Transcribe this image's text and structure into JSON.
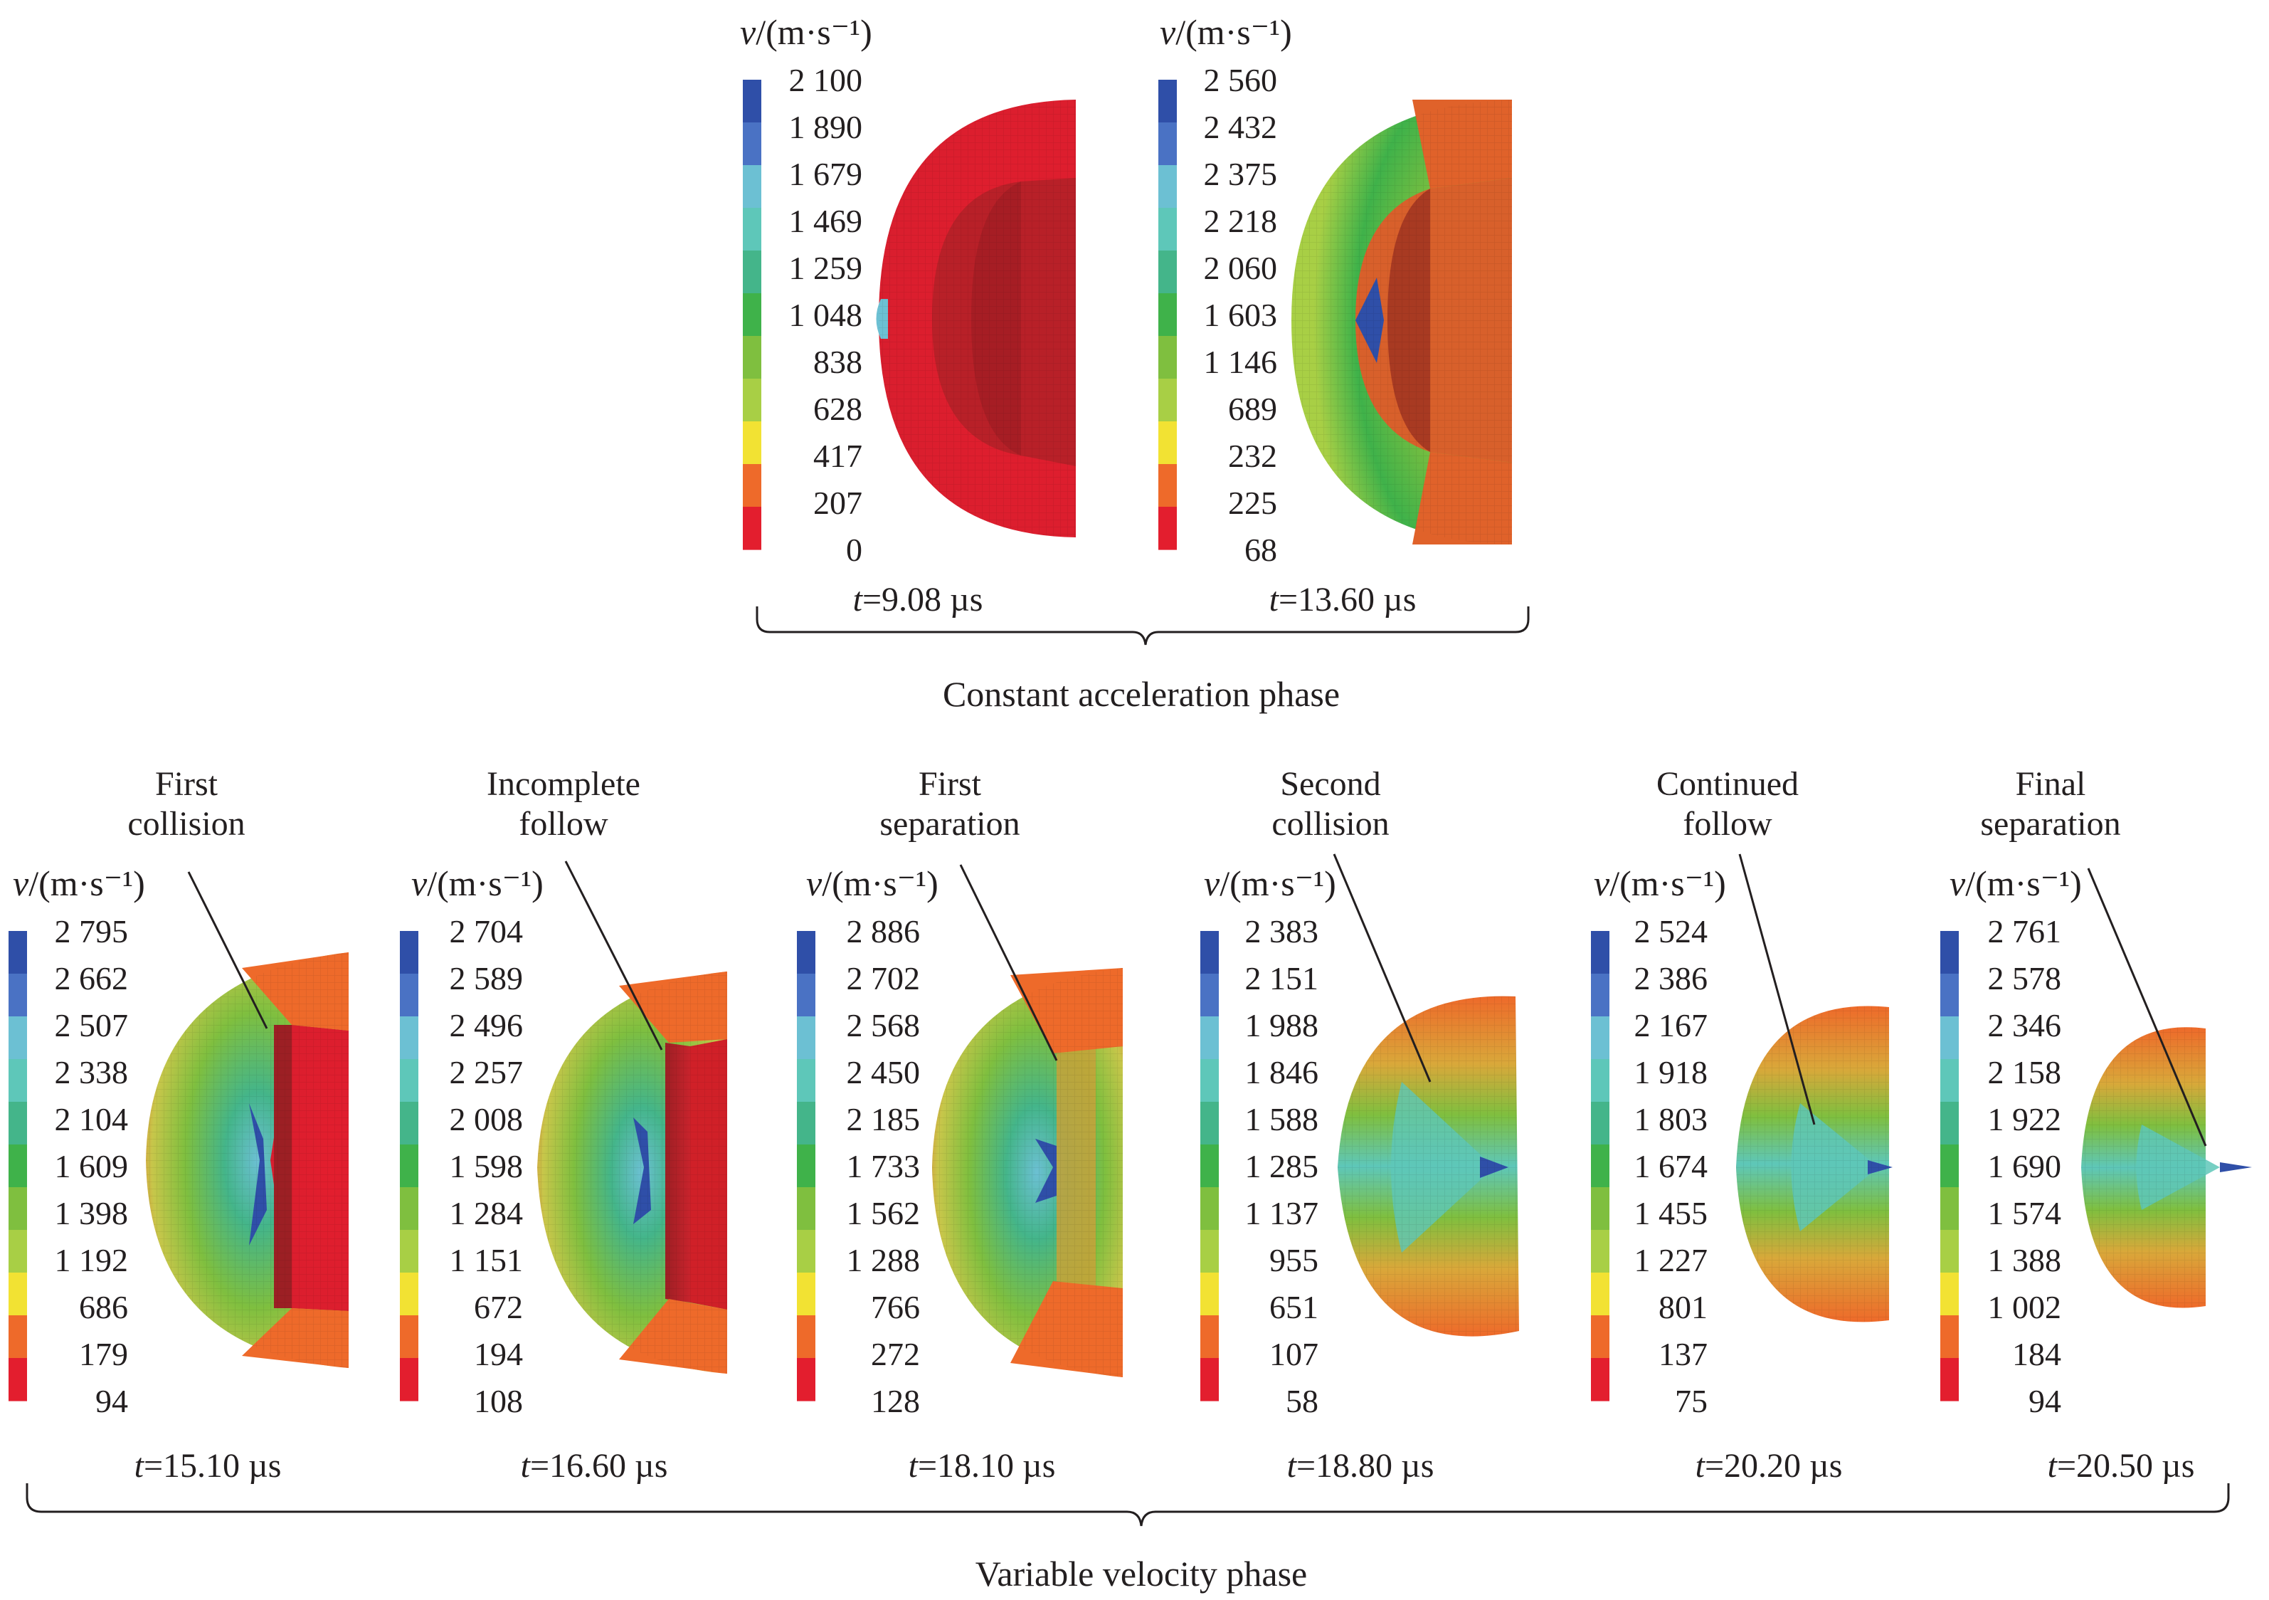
{
  "palette": [
    "#2f4fa8",
    "#4a72c4",
    "#6cc0d3",
    "#5ec7b9",
    "#44b58a",
    "#3fb24a",
    "#7fbf3f",
    "#a8cf45",
    "#f2e233",
    "#ee6a2a",
    "#e31e2e"
  ],
  "unit_label": "v/(m·s⁻¹)",
  "phases": [
    {
      "label": "Constant acceleration phase"
    },
    {
      "label": "Variable velocity phase"
    }
  ],
  "panels": [
    {
      "time": "t=9.08 µs",
      "caption": [],
      "ticks": [
        "2 100",
        "1 890",
        "1 679",
        "1 469",
        "1 259",
        "1 048",
        "838",
        "628",
        "417",
        "207",
        "0"
      ]
    },
    {
      "time": "t=13.60 µs",
      "caption": [],
      "ticks": [
        "2 560",
        "2 432",
        "2 375",
        "2 218",
        "2 060",
        "1 603",
        "1 146",
        "689",
        "232",
        "225",
        "68"
      ]
    },
    {
      "time": "t=15.10 µs",
      "caption": [
        "First",
        "collision"
      ],
      "ticks": [
        "2 795",
        "2 662",
        "2 507",
        "2 338",
        "2 104",
        "1 609",
        "1 398",
        "1 192",
        "686",
        "179",
        "94"
      ]
    },
    {
      "time": "t=16.60 µs",
      "caption": [
        "Incomplete",
        "follow"
      ],
      "ticks": [
        "2 704",
        "2 589",
        "2 496",
        "2 257",
        "2 008",
        "1 598",
        "1 284",
        "1 151",
        "672",
        "194",
        "108"
      ]
    },
    {
      "time": "t=18.10 µs",
      "caption": [
        "First",
        "separation"
      ],
      "ticks": [
        "2 886",
        "2 702",
        "2 568",
        "2 450",
        "2 185",
        "1 733",
        "1 562",
        "1 288",
        "766",
        "272",
        "128"
      ]
    },
    {
      "time": "t=18.80 µs",
      "caption": [
        "Second",
        "collision"
      ],
      "ticks": [
        "2 383",
        "2 151",
        "1 988",
        "1 846",
        "1 588",
        "1 285",
        "1 137",
        "955",
        "651",
        "107",
        "58"
      ]
    },
    {
      "time": "t=20.20 µs",
      "caption": [
        "Continued",
        "follow"
      ],
      "ticks": [
        "2 524",
        "2 386",
        "2 167",
        "1 918",
        "1 803",
        "1 674",
        "1 455",
        "1 227",
        "801",
        "137",
        "75"
      ]
    },
    {
      "time": "t=20.50 µs",
      "caption": [
        "Final",
        "separation"
      ],
      "ticks": [
        "2 761",
        "2 578",
        "2 346",
        "2 158",
        "1 922",
        "1 690",
        "1 574",
        "1 388",
        "1 002",
        "184",
        "94"
      ]
    }
  ]
}
